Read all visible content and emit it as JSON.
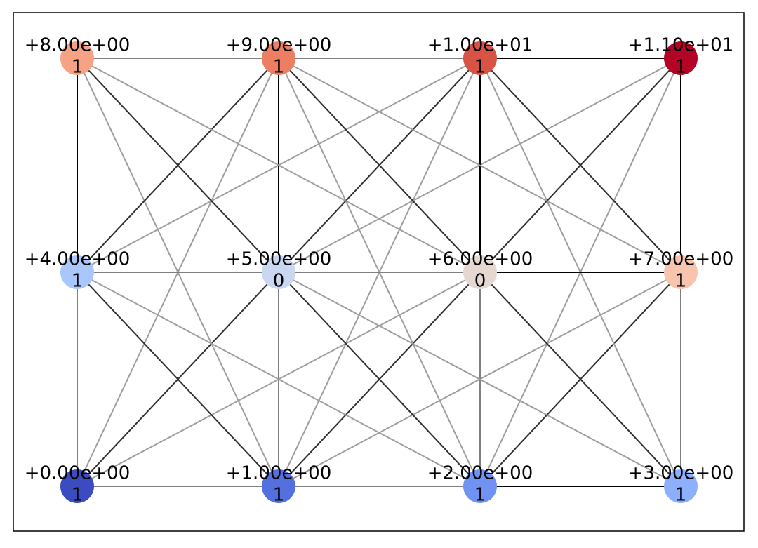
{
  "nodes": [
    {
      "label": "+0.00e+00",
      "sublabel": "1",
      "color": "#3b4cc0"
    },
    {
      "label": "+1.00e+00",
      "sublabel": "1",
      "color": "#5470de"
    },
    {
      "label": "+2.00e+00",
      "sublabel": "1",
      "color": "#7093f3"
    },
    {
      "label": "+3.00e+00",
      "sublabel": "1",
      "color": "#8db0fe"
    },
    {
      "label": "+4.00e+00",
      "sublabel": "1",
      "color": "#aac7fd"
    },
    {
      "label": "+5.00e+00",
      "sublabel": "0",
      "color": "#c9d7f0"
    },
    {
      "label": "+6.00e+00",
      "sublabel": "0",
      "color": "#e5d8d1"
    },
    {
      "label": "+7.00e+00",
      "sublabel": "1",
      "color": "#f7c5ad"
    },
    {
      "label": "+8.00e+00",
      "sublabel": "1",
      "color": "#f6a385"
    },
    {
      "label": "+9.00e+00",
      "sublabel": "1",
      "color": "#ec7f63"
    },
    {
      "label": "+1.00e+01",
      "sublabel": "1",
      "color": "#d75445"
    },
    {
      "label": "+1.10e+01",
      "sublabel": "1",
      "color": "#b40426"
    }
  ]
}
